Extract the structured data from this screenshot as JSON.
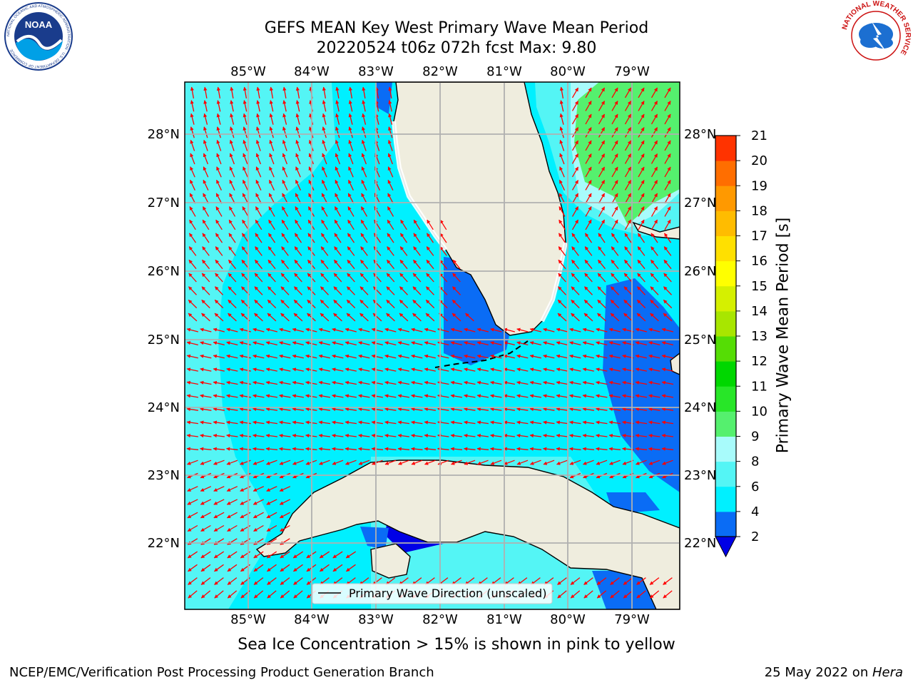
{
  "header": {
    "title_line1": "GEFS MEAN Key West Primary Wave Mean Period",
    "title_line2": "20220524 t06z 072h fcst   Max: 9.80"
  },
  "logos": {
    "left": "NOAA",
    "left_ring_text": "NATIONAL OCEANIC AND ATMOSPHERIC ADMINISTRATION · U.S. DEPARTMENT OF COMMERCE",
    "right_ring_text": "NATIONAL WEATHER SERVICE"
  },
  "map": {
    "lon_ticks": [
      "85°W",
      "84°W",
      "83°W",
      "82°W",
      "81°W",
      "80°W",
      "79°W"
    ],
    "lat_ticks": [
      "28°N",
      "27°N",
      "26°N",
      "25°N",
      "24°N",
      "23°N",
      "22°N"
    ],
    "land_color": "#efedde",
    "legend_label": "Primary Wave Direction (unscaled)",
    "arrow_color": "#ff0000"
  },
  "colorbar": {
    "title": "Primary Wave Mean Period [s]",
    "ticks": [
      "2",
      "4",
      "6",
      "8",
      "9",
      "10",
      "11",
      "12",
      "13",
      "14",
      "15",
      "16",
      "17",
      "18",
      "19",
      "20",
      "21"
    ],
    "colors": [
      "#0a6cf5",
      "#00f0ff",
      "#54f5f5",
      "#a8fbfb",
      "#55f06e",
      "#28e628",
      "#00d700",
      "#55dd05",
      "#a8e600",
      "#d5f000",
      "#ffff00",
      "#ffe000",
      "#ffbc00",
      "#ff9900",
      "#ff6e00",
      "#ff3300",
      "#ff0000"
    ],
    "extend_color": "#0000e6"
  },
  "footer": {
    "ice_note": "Sea Ice Concentration > 15% is shown in pink to yellow",
    "left": "NCEP/EMC/Verification Post Processing Product Generation Branch",
    "right_date": "25 May 2022 on ",
    "right_host": "Hera"
  }
}
